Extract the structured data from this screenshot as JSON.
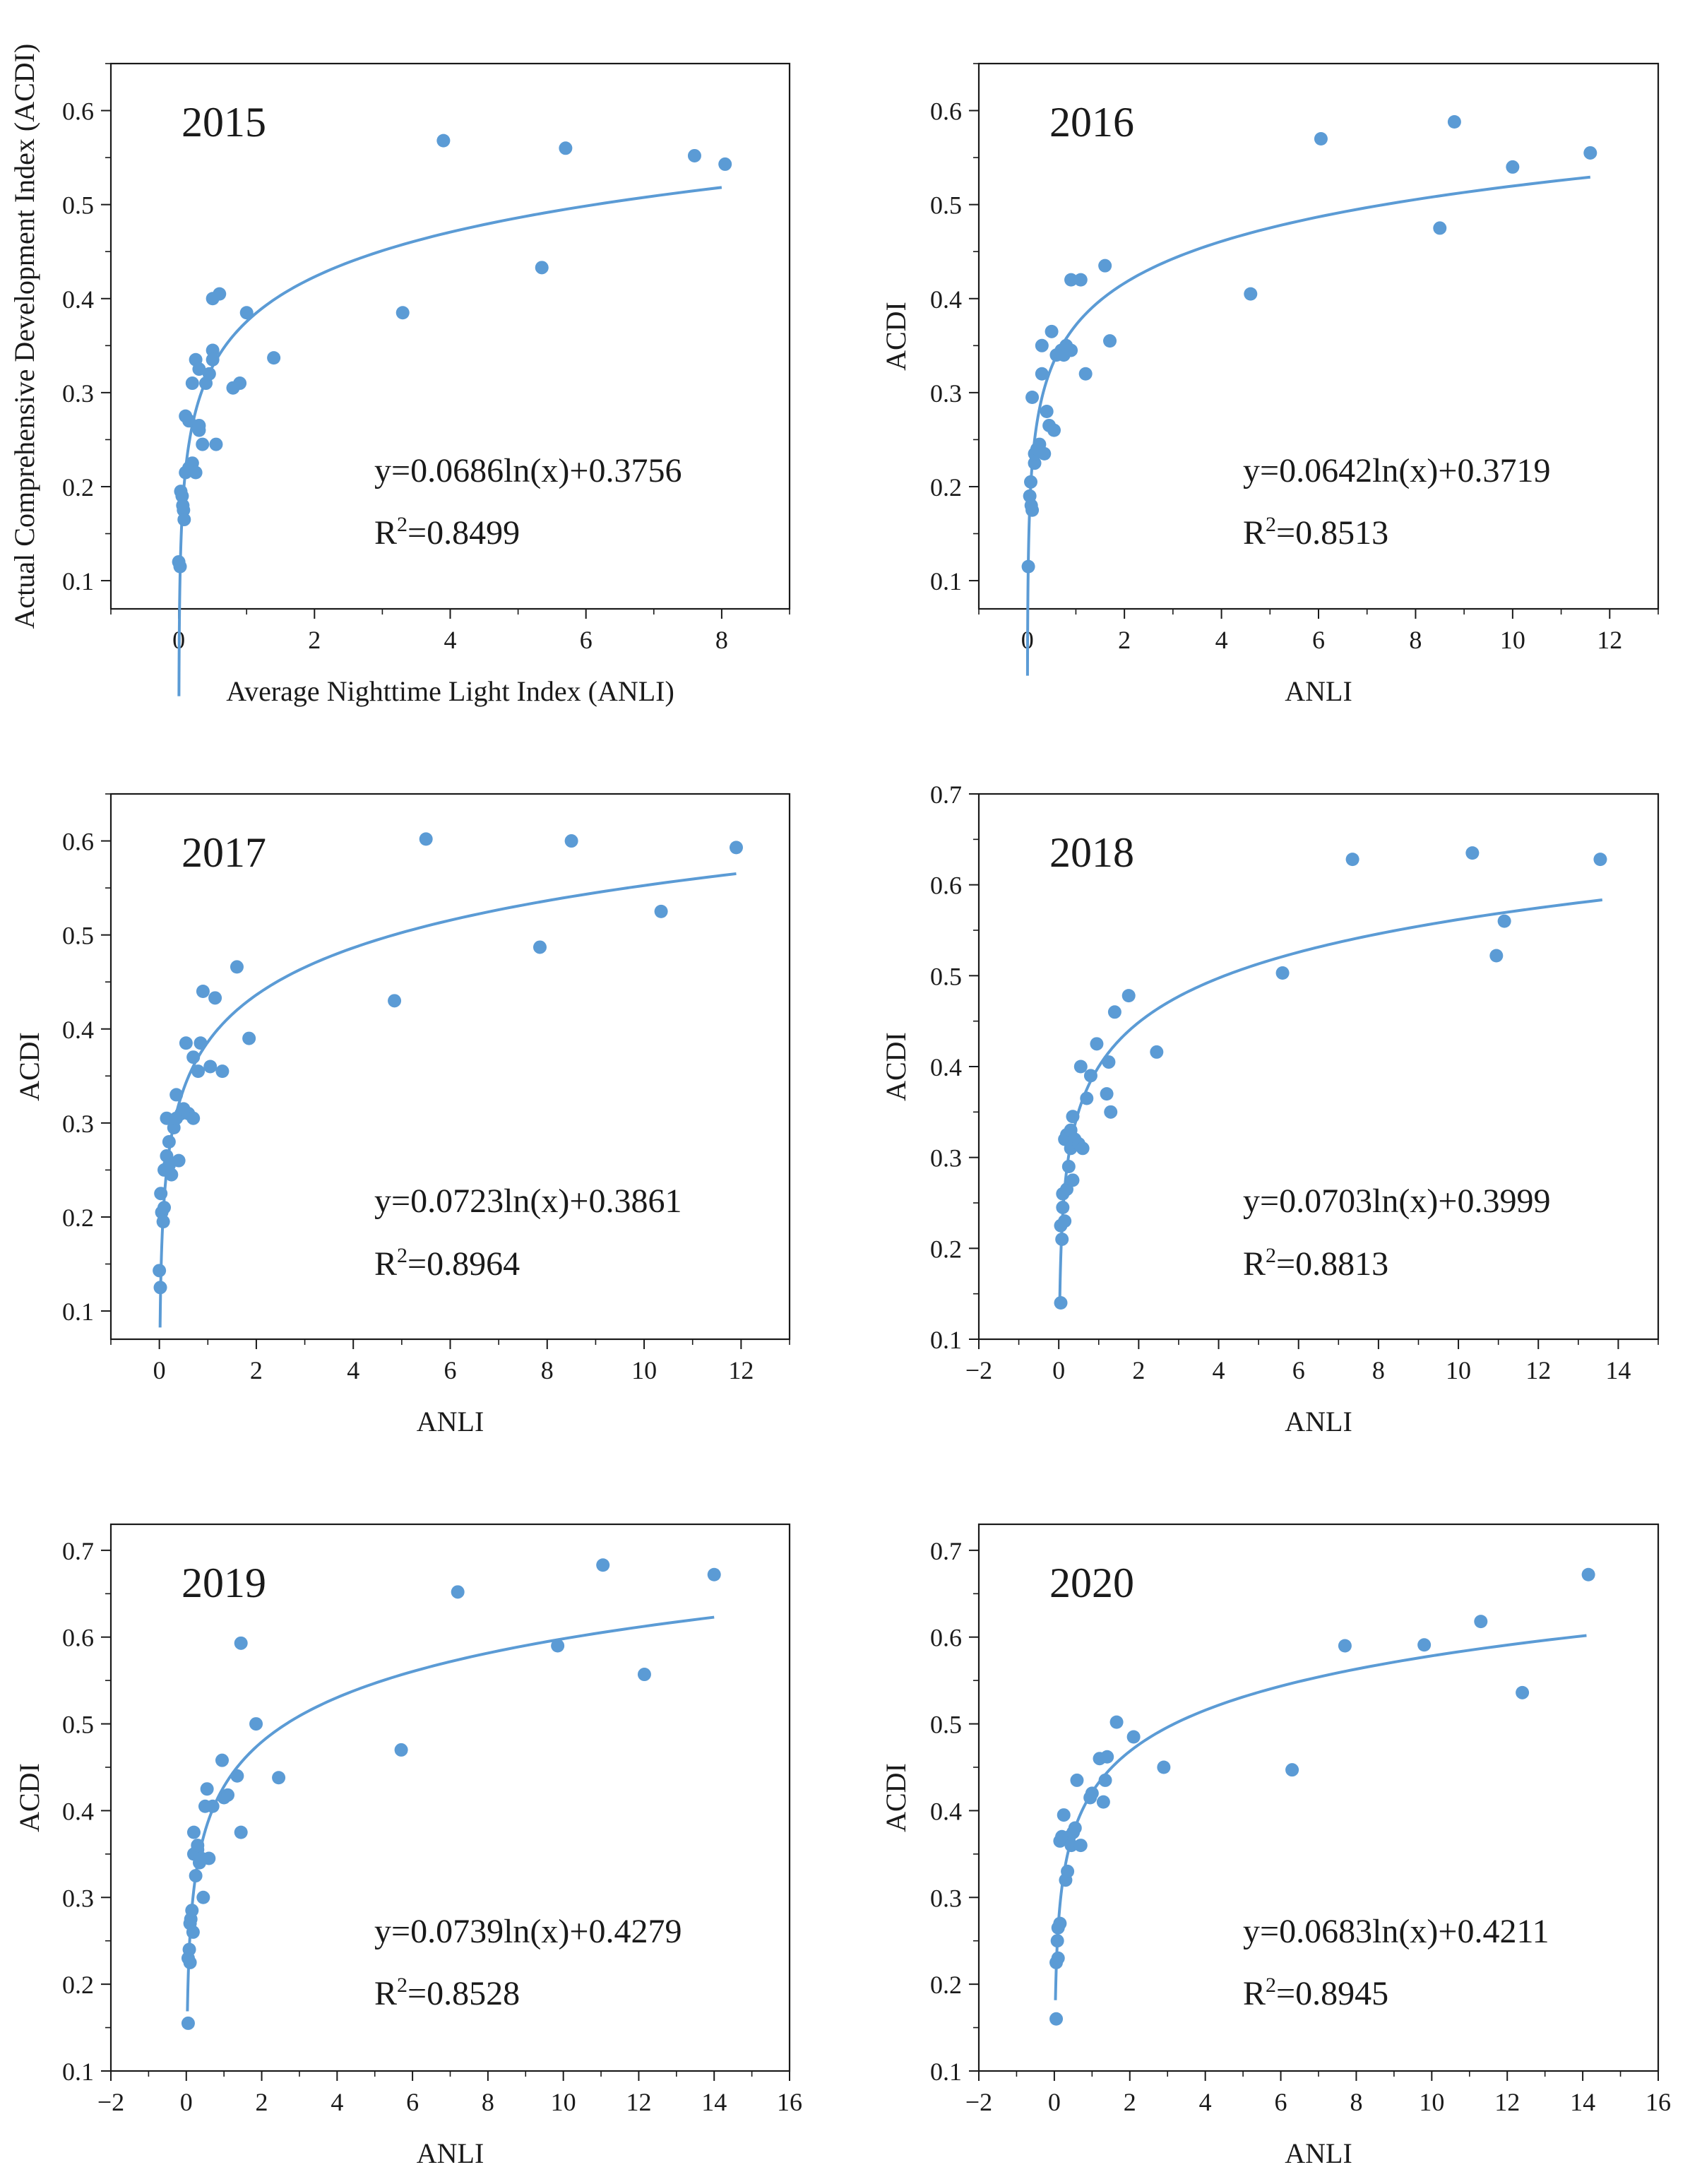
{
  "figure": {
    "colors": {
      "marker": "#5b9bd5",
      "fit_line": "#5b9bd5",
      "axis": "#1a1a1a"
    }
  },
  "chart_data": [
    {
      "type": "scatter",
      "title": "2015",
      "xlabel": "Average Nighttime Light Index (ANLI)",
      "ylabel": "Actual Comprehensive Development Index (ACDI)",
      "xlim": [
        -1,
        9
      ],
      "ylim": [
        0.07,
        0.65
      ],
      "x_ticks": [
        0,
        2,
        4,
        6,
        8
      ],
      "y_ticks": [
        0.1,
        0.2,
        0.3,
        0.4,
        0.5,
        0.6
      ],
      "x_tick_labels": [
        "0",
        "2",
        "4",
        "6",
        "8"
      ],
      "y_tick_labels": [
        "0.1",
        "0.2",
        "0.3",
        "0.4",
        "0.5",
        "0.6"
      ],
      "equation": "y=0.0686ln(x)+0.3756",
      "r2_prefix": "R",
      "r2_sup": "2",
      "r2_value": "=0.8499",
      "fit": {
        "a": 0.0686,
        "b": 0.3756,
        "x_min": 0.003,
        "x_max": 8.0
      },
      "points": [
        [
          0.0,
          0.12
        ],
        [
          0.02,
          0.115
        ],
        [
          0.03,
          0.195
        ],
        [
          0.05,
          0.19
        ],
        [
          0.06,
          0.18
        ],
        [
          0.07,
          0.175
        ],
        [
          0.08,
          0.165
        ],
        [
          0.1,
          0.215
        ],
        [
          0.1,
          0.275
        ],
        [
          0.15,
          0.22
        ],
        [
          0.15,
          0.27
        ],
        [
          0.2,
          0.225
        ],
        [
          0.2,
          0.31
        ],
        [
          0.25,
          0.335
        ],
        [
          0.25,
          0.215
        ],
        [
          0.3,
          0.26
        ],
        [
          0.3,
          0.265
        ],
        [
          0.3,
          0.325
        ],
        [
          0.35,
          0.245
        ],
        [
          0.4,
          0.31
        ],
        [
          0.45,
          0.32
        ],
        [
          0.5,
          0.345
        ],
        [
          0.5,
          0.335
        ],
        [
          0.5,
          0.4
        ],
        [
          0.55,
          0.245
        ],
        [
          0.6,
          0.405
        ],
        [
          0.8,
          0.305
        ],
        [
          0.9,
          0.31
        ],
        [
          1.0,
          0.385
        ],
        [
          1.4,
          0.337
        ],
        [
          3.3,
          0.385
        ],
        [
          3.9,
          0.568
        ],
        [
          5.35,
          0.433
        ],
        [
          5.7,
          0.56
        ],
        [
          7.6,
          0.552
        ],
        [
          8.05,
          0.543
        ]
      ]
    },
    {
      "type": "scatter",
      "title": "2016",
      "xlabel": "ANLI",
      "ylabel": "ACDI",
      "xlim": [
        -1,
        13
      ],
      "ylim": [
        0.07,
        0.65
      ],
      "x_ticks": [
        0,
        2,
        4,
        6,
        8,
        10,
        12
      ],
      "y_ticks": [
        0.1,
        0.2,
        0.3,
        0.4,
        0.5,
        0.6
      ],
      "x_tick_labels": [
        "0",
        "2",
        "4",
        "6",
        "8",
        "10",
        "12"
      ],
      "y_tick_labels": [
        "0.1",
        "0.2",
        "0.3",
        "0.4",
        "0.5",
        "0.6"
      ],
      "equation": "y=0.0642ln(x)+0.3719",
      "r2_prefix": "R",
      "r2_sup": "2",
      "r2_value": "=0.8513",
      "fit": {
        "a": 0.0642,
        "b": 0.3719,
        "x_min": 0.003,
        "x_max": 11.6
      },
      "points": [
        [
          0.02,
          0.115
        ],
        [
          0.05,
          0.19
        ],
        [
          0.07,
          0.205
        ],
        [
          0.08,
          0.18
        ],
        [
          0.1,
          0.175
        ],
        [
          0.1,
          0.295
        ],
        [
          0.15,
          0.225
        ],
        [
          0.15,
          0.235
        ],
        [
          0.2,
          0.24
        ],
        [
          0.25,
          0.245
        ],
        [
          0.3,
          0.35
        ],
        [
          0.3,
          0.32
        ],
        [
          0.35,
          0.235
        ],
        [
          0.4,
          0.28
        ],
        [
          0.45,
          0.265
        ],
        [
          0.5,
          0.365
        ],
        [
          0.55,
          0.26
        ],
        [
          0.6,
          0.34
        ],
        [
          0.7,
          0.345
        ],
        [
          0.75,
          0.34
        ],
        [
          0.8,
          0.35
        ],
        [
          0.85,
          0.345
        ],
        [
          0.9,
          0.345
        ],
        [
          0.9,
          0.42
        ],
        [
          1.1,
          0.42
        ],
        [
          1.2,
          0.32
        ],
        [
          1.6,
          0.435
        ],
        [
          1.7,
          0.355
        ],
        [
          4.6,
          0.405
        ],
        [
          6.05,
          0.57
        ],
        [
          8.5,
          0.475
        ],
        [
          8.8,
          0.588
        ],
        [
          10.0,
          0.54
        ],
        [
          11.6,
          0.555
        ]
      ]
    },
    {
      "type": "scatter",
      "title": "2017",
      "xlabel": "ANLI",
      "ylabel": "ACDI",
      "xlim": [
        -1,
        13
      ],
      "ylim": [
        0.07,
        0.65
      ],
      "x_ticks": [
        0,
        2,
        4,
        6,
        8,
        10,
        12
      ],
      "y_ticks": [
        0.1,
        0.2,
        0.3,
        0.4,
        0.5,
        0.6
      ],
      "x_tick_labels": [
        "0",
        "2",
        "4",
        "6",
        "8",
        "10",
        "12"
      ],
      "y_tick_labels": [
        "0.1",
        "0.2",
        "0.3",
        "0.4",
        "0.5",
        "0.6"
      ],
      "equation": "y=0.0723ln(x)+0.3861",
      "r2_prefix": "R",
      "r2_sup": "2",
      "r2_value": "=0.8964",
      "fit": {
        "a": 0.0723,
        "b": 0.3861,
        "x_min": 0.015,
        "x_max": 11.9
      },
      "points": [
        [
          0.0,
          0.143
        ],
        [
          0.02,
          0.125
        ],
        [
          0.03,
          0.225
        ],
        [
          0.05,
          0.205
        ],
        [
          0.08,
          0.195
        ],
        [
          0.1,
          0.21
        ],
        [
          0.1,
          0.25
        ],
        [
          0.15,
          0.305
        ],
        [
          0.15,
          0.265
        ],
        [
          0.2,
          0.28
        ],
        [
          0.2,
          0.255
        ],
        [
          0.25,
          0.245
        ],
        [
          0.3,
          0.295
        ],
        [
          0.35,
          0.305
        ],
        [
          0.35,
          0.33
        ],
        [
          0.4,
          0.26
        ],
        [
          0.45,
          0.31
        ],
        [
          0.5,
          0.315
        ],
        [
          0.55,
          0.385
        ],
        [
          0.6,
          0.31
        ],
        [
          0.7,
          0.305
        ],
        [
          0.7,
          0.37
        ],
        [
          0.8,
          0.355
        ],
        [
          0.85,
          0.385
        ],
        [
          0.9,
          0.44
        ],
        [
          1.05,
          0.36
        ],
        [
          1.15,
          0.433
        ],
        [
          1.3,
          0.355
        ],
        [
          1.6,
          0.466
        ],
        [
          1.85,
          0.39
        ],
        [
          4.85,
          0.43
        ],
        [
          5.5,
          0.602
        ],
        [
          7.85,
          0.487
        ],
        [
          8.5,
          0.6
        ],
        [
          10.35,
          0.525
        ],
        [
          11.9,
          0.593
        ]
      ]
    },
    {
      "type": "scatter",
      "title": "2018",
      "xlabel": "ANLI",
      "ylabel": "ACDI",
      "xlim": [
        -2,
        15
      ],
      "ylim": [
        0.1,
        0.7
      ],
      "x_ticks": [
        -2,
        0,
        2,
        4,
        6,
        8,
        10,
        12,
        14
      ],
      "y_ticks": [
        0.1,
        0.2,
        0.3,
        0.4,
        0.5,
        0.6,
        0.7
      ],
      "x_tick_labels": [
        "−2",
        "0",
        "2",
        "4",
        "6",
        "8",
        "10",
        "12",
        "14"
      ],
      "y_tick_labels": [
        "0.1",
        "0.2",
        "0.3",
        "0.4",
        "0.5",
        "0.6",
        "0.7"
      ],
      "equation": "y=0.0703ln(x)+0.3999",
      "r2_prefix": "R",
      "r2_sup": "2",
      "r2_value": "=0.8813",
      "fit": {
        "a": 0.0703,
        "b": 0.3999,
        "x_min": 0.025,
        "x_max": 13.6
      },
      "points": [
        [
          0.05,
          0.14
        ],
        [
          0.05,
          0.225
        ],
        [
          0.08,
          0.21
        ],
        [
          0.1,
          0.245
        ],
        [
          0.1,
          0.26
        ],
        [
          0.15,
          0.23
        ],
        [
          0.15,
          0.32
        ],
        [
          0.2,
          0.325
        ],
        [
          0.2,
          0.265
        ],
        [
          0.25,
          0.29
        ],
        [
          0.3,
          0.33
        ],
        [
          0.3,
          0.31
        ],
        [
          0.35,
          0.275
        ],
        [
          0.35,
          0.345
        ],
        [
          0.4,
          0.32
        ],
        [
          0.5,
          0.315
        ],
        [
          0.55,
          0.4
        ],
        [
          0.6,
          0.31
        ],
        [
          0.7,
          0.365
        ],
        [
          0.8,
          0.39
        ],
        [
          0.95,
          0.425
        ],
        [
          1.2,
          0.37
        ],
        [
          1.25,
          0.405
        ],
        [
          1.3,
          0.35
        ],
        [
          1.4,
          0.46
        ],
        [
          1.75,
          0.478
        ],
        [
          2.45,
          0.416
        ],
        [
          5.6,
          0.503
        ],
        [
          7.35,
          0.628
        ],
        [
          10.35,
          0.635
        ],
        [
          10.95,
          0.522
        ],
        [
          11.15,
          0.56
        ],
        [
          13.55,
          0.628
        ]
      ]
    },
    {
      "type": "scatter",
      "title": "2019",
      "xlabel": "ANLI",
      "ylabel": "ACDI",
      "xlim": [
        -2,
        16
      ],
      "ylim": [
        0.1,
        0.73
      ],
      "x_ticks": [
        -2,
        0,
        2,
        4,
        6,
        8,
        10,
        12,
        14,
        16
      ],
      "y_ticks": [
        0.1,
        0.2,
        0.3,
        0.4,
        0.5,
        0.6,
        0.7
      ],
      "x_tick_labels": [
        "−2",
        "0",
        "2",
        "4",
        "6",
        "8",
        "10",
        "12",
        "14",
        "16"
      ],
      "y_tick_labels": [
        "0.1",
        "0.2",
        "0.3",
        "0.4",
        "0.5",
        "0.6",
        "0.7"
      ],
      "equation": "y=0.0739ln(x)+0.4279",
      "r2_prefix": "R",
      "r2_sup": "2",
      "r2_value": "=0.8528",
      "fit": {
        "a": 0.0739,
        "b": 0.4279,
        "x_min": 0.03,
        "x_max": 14.0
      },
      "points": [
        [
          0.05,
          0.155
        ],
        [
          0.05,
          0.23
        ],
        [
          0.08,
          0.24
        ],
        [
          0.1,
          0.225
        ],
        [
          0.1,
          0.27
        ],
        [
          0.12,
          0.275
        ],
        [
          0.15,
          0.285
        ],
        [
          0.18,
          0.26
        ],
        [
          0.2,
          0.35
        ],
        [
          0.2,
          0.375
        ],
        [
          0.25,
          0.325
        ],
        [
          0.3,
          0.355
        ],
        [
          0.3,
          0.36
        ],
        [
          0.35,
          0.34
        ],
        [
          0.4,
          0.345
        ],
        [
          0.45,
          0.3
        ],
        [
          0.5,
          0.405
        ],
        [
          0.55,
          0.425
        ],
        [
          0.6,
          0.345
        ],
        [
          0.7,
          0.405
        ],
        [
          0.95,
          0.458
        ],
        [
          1.0,
          0.415
        ],
        [
          1.1,
          0.418
        ],
        [
          1.35,
          0.44
        ],
        [
          1.45,
          0.593
        ],
        [
          1.45,
          0.375
        ],
        [
          1.85,
          0.5
        ],
        [
          2.45,
          0.438
        ],
        [
          5.7,
          0.47
        ],
        [
          7.2,
          0.652
        ],
        [
          9.85,
          0.59
        ],
        [
          11.05,
          0.683
        ],
        [
          12.15,
          0.557
        ],
        [
          14.0,
          0.672
        ]
      ]
    },
    {
      "type": "scatter",
      "title": "2020",
      "xlabel": "ANLI",
      "ylabel": "ACDI",
      "xlim": [
        -2,
        16
      ],
      "ylim": [
        0.1,
        0.73
      ],
      "x_ticks": [
        -2,
        0,
        2,
        4,
        6,
        8,
        10,
        12,
        14,
        16
      ],
      "y_ticks": [
        0.1,
        0.2,
        0.3,
        0.4,
        0.5,
        0.6,
        0.7
      ],
      "x_tick_labels": [
        "−2",
        "0",
        "2",
        "4",
        "6",
        "8",
        "10",
        "12",
        "14",
        "16"
      ],
      "y_tick_labels": [
        "0.1",
        "0.2",
        "0.3",
        "0.4",
        "0.5",
        "0.6",
        "0.7"
      ],
      "equation": "y=0.0683ln(x)+0.4211",
      "r2_prefix": "R",
      "r2_sup": "2",
      "r2_value": "=0.8945",
      "fit": {
        "a": 0.0683,
        "b": 0.4211,
        "x_min": 0.03,
        "x_max": 14.1
      },
      "points": [
        [
          0.05,
          0.16
        ],
        [
          0.05,
          0.225
        ],
        [
          0.08,
          0.25
        ],
        [
          0.1,
          0.265
        ],
        [
          0.1,
          0.23
        ],
        [
          0.15,
          0.27
        ],
        [
          0.15,
          0.365
        ],
        [
          0.2,
          0.37
        ],
        [
          0.25,
          0.395
        ],
        [
          0.3,
          0.32
        ],
        [
          0.35,
          0.33
        ],
        [
          0.4,
          0.37
        ],
        [
          0.45,
          0.36
        ],
        [
          0.5,
          0.375
        ],
        [
          0.55,
          0.38
        ],
        [
          0.6,
          0.435
        ],
        [
          0.7,
          0.36
        ],
        [
          0.95,
          0.415
        ],
        [
          1.0,
          0.42
        ],
        [
          1.2,
          0.46
        ],
        [
          1.3,
          0.41
        ],
        [
          1.35,
          0.435
        ],
        [
          1.4,
          0.462
        ],
        [
          1.65,
          0.502
        ],
        [
          2.1,
          0.485
        ],
        [
          2.9,
          0.45
        ],
        [
          6.3,
          0.447
        ],
        [
          7.7,
          0.59
        ],
        [
          9.8,
          0.591
        ],
        [
          11.3,
          0.618
        ],
        [
          12.4,
          0.536
        ],
        [
          14.15,
          0.672
        ]
      ]
    }
  ]
}
